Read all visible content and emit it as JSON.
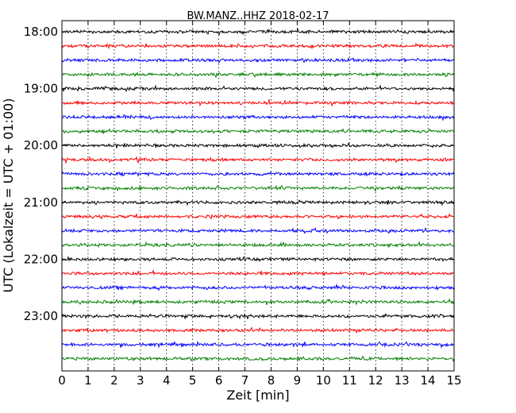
{
  "chart_data": {
    "type": "line",
    "title": "BW.MANZ..HHZ 2018-02-17",
    "xlabel": "Zeit  [min]",
    "ylabel": "UTC (Lokalzeit = UTC + 01:00)",
    "xlim": [
      0,
      15
    ],
    "x_ticks": [
      "0",
      "1",
      "2",
      "3",
      "4",
      "5",
      "6",
      "7",
      "8",
      "9",
      "10",
      "11",
      "12",
      "13",
      "14",
      "15"
    ],
    "y_ticks": [
      "18:00",
      "19:00",
      "20:00",
      "21:00",
      "22:00",
      "23:00"
    ],
    "grid_x": true,
    "rows_per_tick": 4,
    "trace_colors": [
      "#000000",
      "#ff0000",
      "#0000ff",
      "#008000"
    ],
    "trace_starts": [
      "18:00",
      "18:15",
      "18:30",
      "18:45",
      "19:00",
      "19:15",
      "19:30",
      "19:45",
      "20:00",
      "20:15",
      "20:30",
      "20:45",
      "21:00",
      "21:15",
      "21:30",
      "21:45",
      "22:00",
      "22:15",
      "22:30",
      "22:45",
      "23:00",
      "23:15",
      "23:30",
      "23:45"
    ]
  }
}
